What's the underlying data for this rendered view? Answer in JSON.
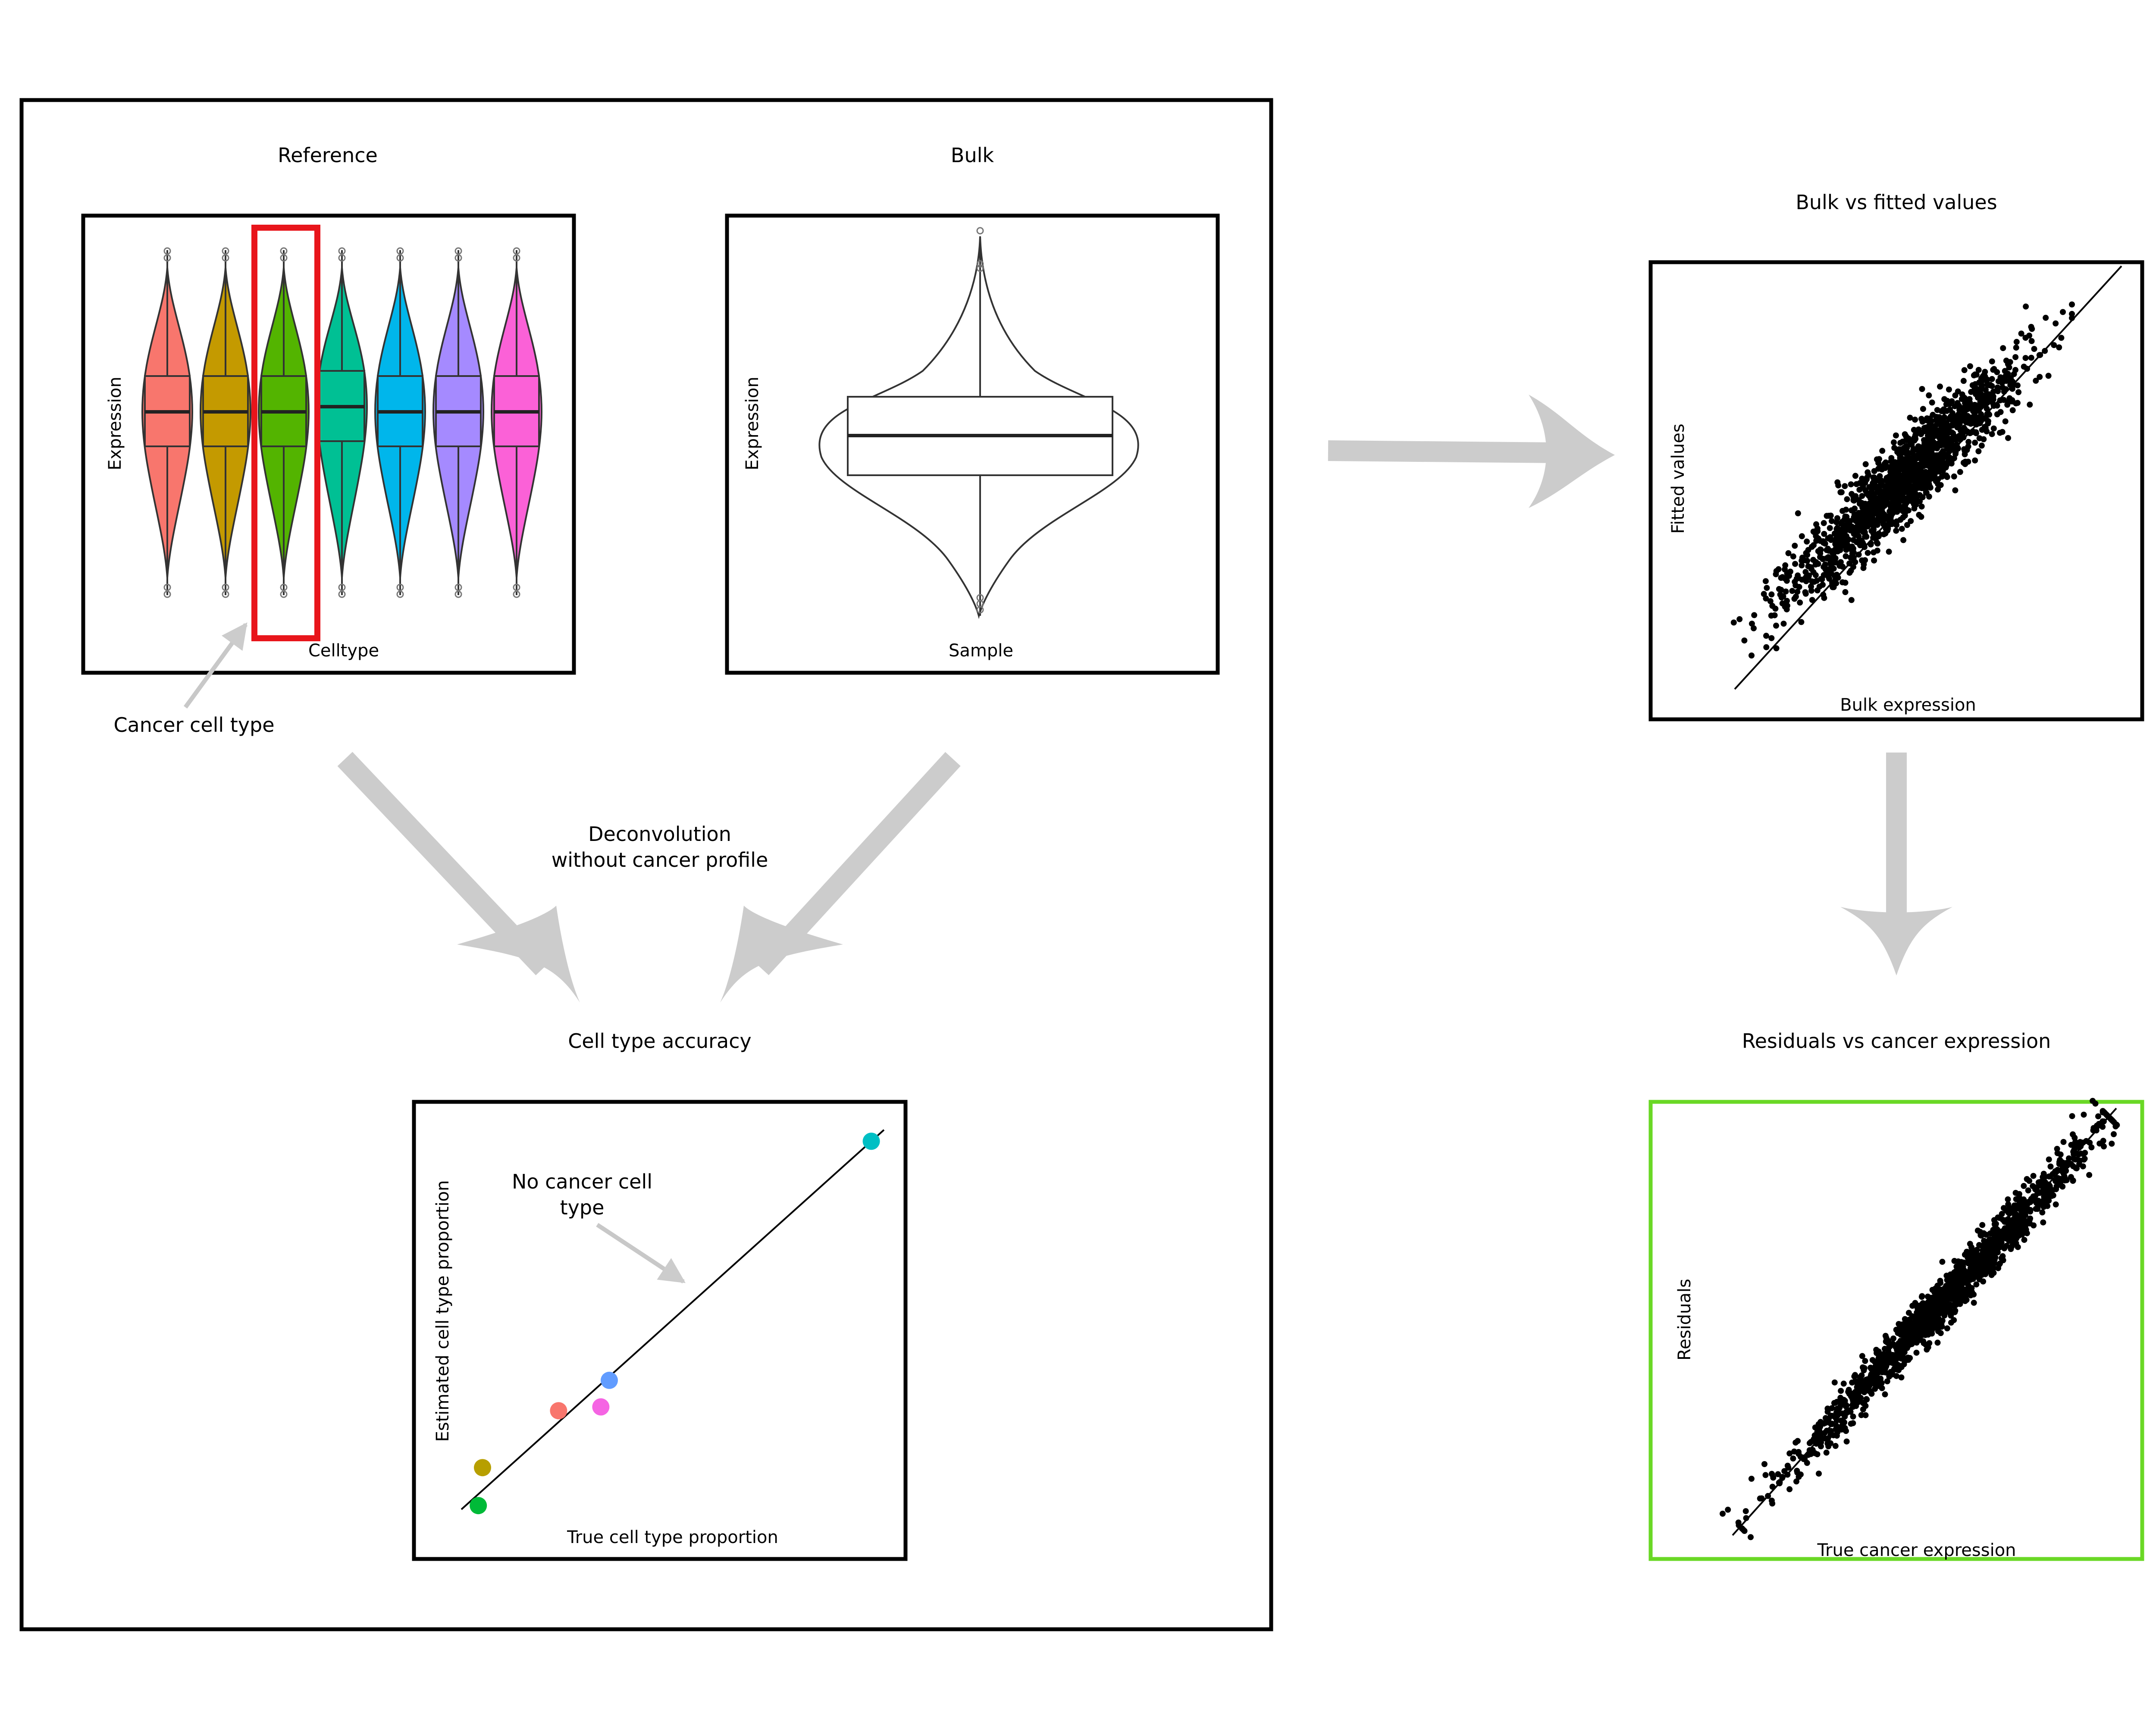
{
  "left_panel": {
    "reference": {
      "title": "Reference",
      "ylabel": "Expression",
      "xlabel": "Celltype",
      "violin_colors": [
        "#f8766d",
        "#c49a00",
        "#53b400",
        "#00c094",
        "#00b6eb",
        "#a58aff",
        "#fb61d7"
      ],
      "highlight_color": "#e8151b",
      "highlight_index": 2
    },
    "bulk": {
      "title": "Bulk",
      "ylabel": "Expression",
      "xlabel": "Sample"
    },
    "cancer_annotation": "Cancer cell type",
    "deconvolution_line1": "Deconvolution",
    "deconvolution_line2": "without cancer profile",
    "accuracy": {
      "title": "Cell type accuracy",
      "xlabel": "True cell type proportion",
      "ylabel": "Estimated cell type proportion",
      "annotation_line1": "No cancer cell",
      "annotation_line2": "type",
      "points": [
        {
          "x": 0.04,
          "y": 0.01,
          "color": "#00ba38"
        },
        {
          "x": 0.05,
          "y": 0.11,
          "color": "#b79f00"
        },
        {
          "x": 0.23,
          "y": 0.26,
          "color": "#f8766d"
        },
        {
          "x": 0.33,
          "y": 0.27,
          "color": "#f564e3"
        },
        {
          "x": 0.35,
          "y": 0.34,
          "color": "#619cff"
        },
        {
          "x": 0.97,
          "y": 0.97,
          "color": "#00bfc4"
        }
      ]
    }
  },
  "right_panel": {
    "fitted": {
      "title": "Bulk vs fitted values",
      "xlabel": "Bulk expression",
      "ylabel": "Fitted values"
    },
    "residuals": {
      "title": "Residuals vs cancer expression",
      "xlabel": "True cancer expression",
      "ylabel": "Residuals",
      "border_color": "#6ad825"
    }
  },
  "arrow_color": "#cccccc"
}
